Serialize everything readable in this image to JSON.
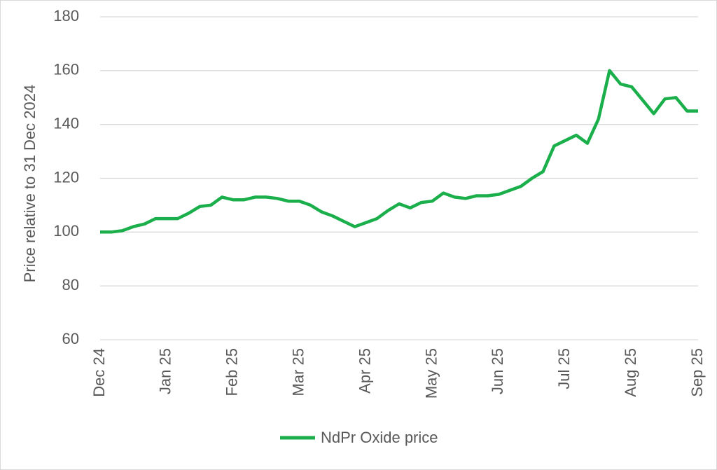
{
  "chart_data": {
    "type": "line",
    "y_label": "Price relative to 31 Dec 2024",
    "categories": [
      "Dec 24",
      null,
      null,
      null,
      null,
      null,
      "Jan 25",
      null,
      null,
      null,
      null,
      null,
      "Feb 25",
      null,
      null,
      null,
      null,
      null,
      "Mar 25",
      null,
      null,
      null,
      null,
      null,
      "Apr 25",
      null,
      null,
      null,
      null,
      null,
      "May 25",
      null,
      null,
      null,
      null,
      null,
      "Jun 25",
      null,
      null,
      null,
      null,
      null,
      "Jul 25",
      null,
      null,
      null,
      null,
      null,
      "Aug 25",
      null,
      null,
      null,
      null,
      null,
      "Sep 25"
    ],
    "series": [
      {
        "name": "NdPr Oxide price",
        "color": "#1aaf4b",
        "values": [
          100,
          100,
          100.5,
          102,
          103,
          105,
          105,
          105,
          107,
          109.5,
          110,
          113,
          112,
          112,
          113,
          113,
          112.5,
          111.5,
          111.5,
          110,
          107.5,
          106,
          104,
          102,
          103.5,
          105,
          108,
          110.5,
          109,
          111,
          111.5,
          114.5,
          113,
          112.5,
          113.5,
          113.5,
          114,
          115.5,
          117,
          120,
          122.5,
          132,
          134,
          136,
          133,
          142,
          160,
          155,
          154,
          149,
          144,
          149.5,
          150,
          145,
          145
        ]
      }
    ],
    "ylim": [
      60,
      180
    ],
    "yticks": [
      60,
      80,
      100,
      120,
      140,
      160,
      180
    ],
    "grid": true,
    "legend": "bottom"
  }
}
